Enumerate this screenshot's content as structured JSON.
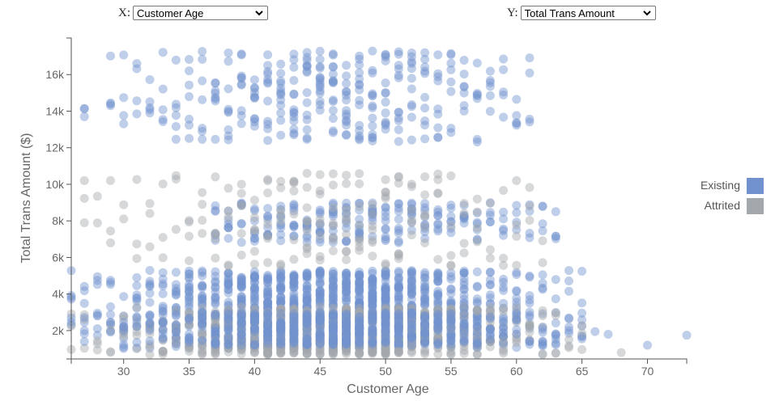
{
  "controls": {
    "x_label": "X:",
    "x_selected": "Customer Age",
    "y_label": "Y:",
    "y_selected": "Total Trans Amount"
  },
  "chart_data": {
    "type": "scatter",
    "title": "",
    "xlabel": "Customer Age",
    "ylabel": "Total Trans Amount ($)",
    "xlim": [
      26,
      73
    ],
    "ylim": [
      450,
      18000
    ],
    "x_ticks": [
      30,
      35,
      40,
      45,
      50,
      55,
      60,
      65,
      70
    ],
    "x_tick_labels": [
      "30",
      "35",
      "40",
      "45",
      "50",
      "55",
      "60",
      "65",
      "70"
    ],
    "y_ticks": [
      2000,
      4000,
      6000,
      8000,
      10000,
      12000,
      14000,
      16000
    ],
    "y_tick_labels": [
      "2k",
      "4k",
      "6k",
      "8k",
      "10k",
      "12k",
      "14k",
      "16k"
    ],
    "grid": false,
    "legend_position": "right",
    "point_radius": 5.5,
    "point_opacity": 0.45,
    "series": [
      {
        "name": "Existing",
        "color": "#7292cf",
        "clusters": [
          {
            "band": "low",
            "age_range": [
              26,
              73
            ],
            "amount_range": [
              1000,
              5300
            ],
            "density_peak_age": 46
          },
          {
            "band": "mid",
            "age_range": [
              37,
              63
            ],
            "amount_range": [
              6800,
              9000
            ]
          },
          {
            "band": "high",
            "age_range": [
              27,
              61
            ],
            "amount_range": [
              11600,
              18000
            ]
          }
        ],
        "notable_points": [
          [
            66,
            1950
          ],
          [
            67,
            1800
          ],
          [
            70,
            1200
          ],
          [
            73,
            1750
          ]
        ]
      },
      {
        "name": "Attrited",
        "color": "#a3a8ad",
        "clusters": [
          {
            "band": "low",
            "age_range": [
              26,
              68
            ],
            "amount_range": [
              500,
              3200
            ],
            "density_peak_age": 46
          },
          {
            "band": "mid",
            "age_range": [
              27,
              62
            ],
            "amount_range": [
              5500,
              10600
            ]
          }
        ],
        "notable_points": [
          [
            27,
            10200
          ],
          [
            29,
            10200
          ],
          [
            44,
            10600
          ],
          [
            47,
            10500
          ],
          [
            60,
            10200
          ],
          [
            68,
            800
          ]
        ]
      }
    ]
  },
  "legend": {
    "items": [
      {
        "label": "Existing",
        "color": "#7292cf"
      },
      {
        "label": "Attrited",
        "color": "#a3a8ad"
      }
    ]
  }
}
